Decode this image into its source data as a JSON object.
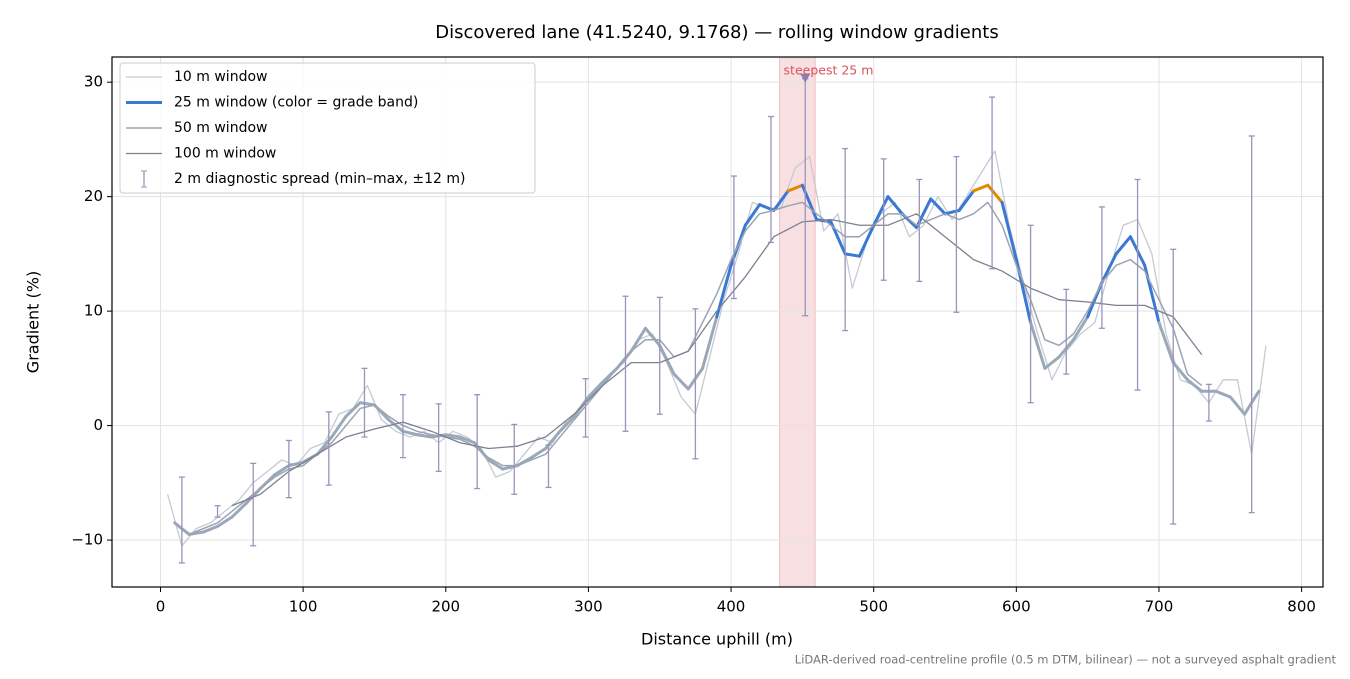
{
  "chart_data": {
    "type": "line",
    "title": "Discovered lane (41.5240, 9.1768) — rolling window gradients",
    "x_label": "Distance uphill (m)",
    "y_label": "Gradient (%)",
    "footnote": "LiDAR-derived road-centreline profile (0.5 m DTM, bilinear) — not a surveyed asphalt gradient",
    "xlim": [
      -34,
      815
    ],
    "ylim": [
      -14.1,
      32.2
    ],
    "xticks": [
      0,
      100,
      200,
      300,
      400,
      500,
      600,
      700,
      800
    ],
    "yticks": [
      {
        "value": -10,
        "label": "−10"
      },
      0,
      10,
      20,
      30
    ],
    "grid": true,
    "legend": "upper left",
    "highlight": {
      "xlim": [
        434,
        459
      ],
      "label": "steepest 25 m",
      "marker": [
        452,
        30.3
      ],
      "color": "#d9535d",
      "marker_color": "#8a7fb0"
    },
    "series": [
      {
        "name": "10 m window",
        "color": "#c5cad3",
        "width": 1.3,
        "x": [
          5,
          15,
          25,
          35,
          45,
          55,
          65,
          75,
          85,
          95,
          105,
          115,
          125,
          135,
          145,
          155,
          165,
          175,
          185,
          195,
          205,
          215,
          225,
          235,
          245,
          255,
          265,
          275,
          285,
          295,
          305,
          315,
          325,
          335,
          345,
          355,
          365,
          375,
          385,
          395,
          405,
          415,
          425,
          435,
          445,
          455,
          465,
          475,
          485,
          495,
          505,
          515,
          525,
          535,
          545,
          555,
          565,
          575,
          585,
          595,
          605,
          615,
          625,
          635,
          645,
          655,
          665,
          675,
          685,
          695,
          705,
          715,
          725,
          735,
          745,
          755,
          765,
          775
        ],
        "values": [
          -6.0,
          -10.5,
          -9.0,
          -8.5,
          -7.5,
          -6.5,
          -5.0,
          -4.0,
          -3.0,
          -3.5,
          -2.0,
          -1.5,
          1.0,
          1.5,
          3.5,
          0.5,
          -0.5,
          -1.0,
          -0.5,
          -1.5,
          -0.5,
          -1.0,
          -2.0,
          -4.5,
          -4.0,
          -2.5,
          -1.0,
          -1.5,
          0.5,
          1.5,
          3.0,
          4.5,
          5.5,
          7.5,
          8.0,
          5.5,
          2.5,
          1.0,
          6.0,
          11.0,
          15.0,
          19.5,
          19.0,
          19.0,
          22.5,
          23.5,
          17.0,
          18.5,
          12.0,
          16.0,
          18.5,
          19.5,
          16.5,
          17.5,
          20.0,
          18.0,
          20.0,
          22.0,
          24.0,
          17.5,
          12.5,
          8.0,
          4.0,
          6.5,
          8.0,
          9.0,
          13.5,
          17.5,
          18.0,
          15.0,
          8.0,
          4.0,
          3.5,
          2.0,
          4.0,
          4.0,
          -2.5,
          7.0
        ]
      },
      {
        "name": "25 m window (color = grade band)",
        "color": "#3a78d4",
        "width": 3,
        "grade_band_limits": [
          10,
          20
        ],
        "grade_band_colors": [
          "#9aa8b8",
          "#3a78d4",
          "#e08a00"
        ],
        "x": [
          10,
          20,
          30,
          40,
          50,
          60,
          70,
          80,
          90,
          100,
          110,
          120,
          130,
          140,
          150,
          160,
          170,
          180,
          190,
          200,
          210,
          220,
          230,
          240,
          250,
          260,
          270,
          280,
          290,
          300,
          310,
          320,
          330,
          340,
          350,
          360,
          370,
          380,
          390,
          400,
          410,
          420,
          430,
          440,
          450,
          460,
          470,
          480,
          490,
          500,
          510,
          520,
          530,
          540,
          550,
          560,
          570,
          580,
          590,
          600,
          610,
          620,
          630,
          640,
          650,
          660,
          670,
          680,
          690,
          700,
          710,
          720,
          730,
          740,
          750,
          760,
          770
        ],
        "values": [
          -8.5,
          -9.5,
          -9.3,
          -8.8,
          -8.0,
          -6.8,
          -5.5,
          -4.3,
          -3.5,
          -3.2,
          -2.5,
          -1.0,
          0.8,
          2.0,
          1.8,
          0.5,
          -0.5,
          -0.8,
          -1.0,
          -0.8,
          -1.0,
          -1.5,
          -3.0,
          -3.8,
          -3.5,
          -2.8,
          -2.0,
          -0.5,
          0.8,
          2.5,
          3.8,
          5.0,
          6.5,
          8.5,
          7.0,
          4.5,
          3.2,
          5.0,
          9.5,
          14.0,
          17.5,
          19.3,
          18.8,
          20.5,
          21.0,
          18.0,
          17.8,
          15.0,
          14.8,
          17.5,
          20.0,
          18.5,
          17.3,
          19.8,
          18.5,
          18.8,
          20.5,
          21.0,
          19.5,
          14.5,
          9.0,
          5.0,
          6.0,
          7.5,
          9.5,
          12.5,
          15.0,
          16.5,
          14.0,
          9.0,
          5.5,
          4.0,
          3.0,
          3.0,
          2.5,
          1.0,
          3.0
        ]
      },
      {
        "name": "50 m window",
        "color": "#9aa4b4",
        "width": 1.5,
        "x": [
          20,
          30,
          40,
          50,
          60,
          70,
          80,
          90,
          100,
          110,
          120,
          130,
          140,
          150,
          160,
          170,
          180,
          190,
          200,
          210,
          220,
          230,
          240,
          250,
          260,
          270,
          280,
          290,
          300,
          310,
          320,
          330,
          340,
          350,
          360,
          370,
          380,
          390,
          400,
          410,
          420,
          430,
          440,
          450,
          460,
          470,
          480,
          490,
          500,
          510,
          520,
          530,
          540,
          550,
          560,
          570,
          580,
          590,
          600,
          610,
          620,
          630,
          640,
          650,
          660,
          670,
          680,
          690,
          700,
          710,
          720,
          730
        ],
        "values": [
          -9.5,
          -9,
          -8.5,
          -7.5,
          -6.5,
          -5.5,
          -4.5,
          -3.8,
          -3.5,
          -2.5,
          -1.5,
          0,
          1.5,
          1.8,
          0.8,
          0,
          -0.5,
          -0.8,
          -1,
          -1.2,
          -1.8,
          -2.8,
          -3.5,
          -3.5,
          -3,
          -2.5,
          -1.0,
          0.5,
          2.0,
          3.5,
          5.0,
          6.5,
          7.5,
          7.5,
          6.0,
          6.5,
          9,
          11.5,
          14.5,
          17,
          18.5,
          18.8,
          19.2,
          19.5,
          18.5,
          17.5,
          16.5,
          16.5,
          17.5,
          18.5,
          18.5,
          17.5,
          18.0,
          18.5,
          18.0,
          18.5,
          19.5,
          17.5,
          14.0,
          11.0,
          7.5,
          7.0,
          8.0,
          10.0,
          12.5,
          14.0,
          14.5,
          13.5,
          11.0,
          8.5,
          4.5,
          3.5
        ]
      },
      {
        "name": "100 m window",
        "color": "#7a8190",
        "width": 1.3,
        "x": [
          50,
          70,
          90,
          110,
          130,
          150,
          170,
          190,
          210,
          230,
          250,
          270,
          290,
          310,
          330,
          350,
          370,
          390,
          410,
          430,
          450,
          470,
          490,
          510,
          530,
          550,
          570,
          590,
          610,
          630,
          650,
          670,
          690,
          710,
          730
        ],
        "values": [
          -7,
          -6,
          -4,
          -2.5,
          -1,
          -0.3,
          0.3,
          -0.5,
          -1.5,
          -2,
          -1.8,
          -1.0,
          1.0,
          3.5,
          5.5,
          5.5,
          6.5,
          10,
          13,
          16.5,
          17.8,
          18,
          17.5,
          17.5,
          18.5,
          16.5,
          14.5,
          13.5,
          12,
          11,
          10.8,
          10.5,
          10.5,
          9.5,
          6.2
        ]
      },
      {
        "name": "2 m diagnostic spread (min–max, ±12 m)",
        "type": "errorbar",
        "color": "#9a93bb",
        "x": [
          15,
          40,
          65,
          90,
          118,
          143,
          170,
          195,
          222,
          248,
          272,
          298,
          326,
          350,
          375,
          402,
          428,
          452,
          480,
          507,
          532,
          558,
          583,
          610,
          635,
          660,
          685,
          710,
          735,
          765
        ],
        "low": [
          -12,
          -8,
          -10.5,
          -6.3,
          -5.2,
          -1,
          -2.8,
          -4,
          -5.5,
          -6,
          -5.4,
          -1.0,
          -0.5,
          1,
          -2.9,
          11.1,
          16,
          9.6,
          8.3,
          12.7,
          12.6,
          9.9,
          13.7,
          2,
          4.5,
          8.5,
          3.1,
          -8.6,
          0.4,
          -7.6
        ],
        "high": [
          -4.5,
          -7,
          -3.3,
          -1.3,
          1.2,
          5,
          2.7,
          1.9,
          2.7,
          0.1,
          -1.7,
          4.1,
          11.3,
          11.2,
          10.2,
          21.8,
          27,
          30.3,
          24.2,
          23.3,
          21.5,
          23.5,
          28.7,
          17.5,
          11.9,
          19.1,
          21.5,
          15.4,
          3.6,
          25.3
        ]
      }
    ]
  }
}
